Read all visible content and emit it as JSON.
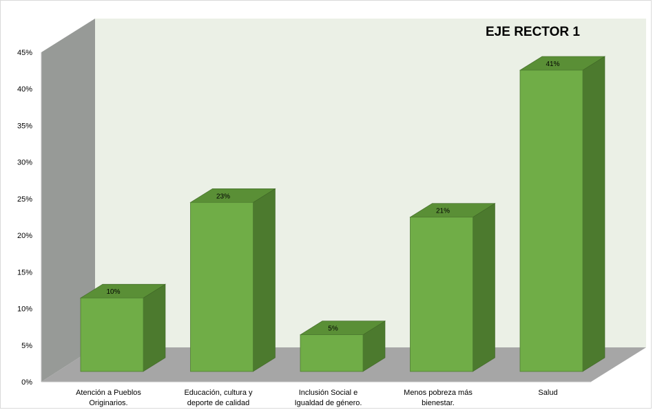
{
  "chart_data": {
    "type": "bar",
    "title": "EJE RECTOR 1",
    "categories": [
      [
        "Atención a Pueblos",
        "Originarios."
      ],
      [
        "Educación, cultura y",
        "deporte de calidad"
      ],
      [
        "Inclusión Social e",
        "Igualdad de género."
      ],
      [
        "Menos pobreza más",
        "bienestar."
      ],
      [
        "Salud"
      ]
    ],
    "values": [
      10,
      23,
      5,
      21,
      41
    ],
    "data_labels": [
      "10%",
      "23%",
      "5%",
      "21%",
      "41%"
    ],
    "yticks": [
      "0%",
      "5%",
      "10%",
      "15%",
      "20%",
      "25%",
      "30%",
      "35%",
      "40%",
      "45%"
    ],
    "ylim": [
      0,
      45
    ],
    "grid": false,
    "legend": "none",
    "colors": {
      "bar_front": "#70ad47",
      "bar_side": "#4c7a2e",
      "bar_top": "#5a8f36",
      "back_wall": "#ebf0e6",
      "side_wall": "#979a97",
      "floor": "#a6a6a6"
    }
  }
}
